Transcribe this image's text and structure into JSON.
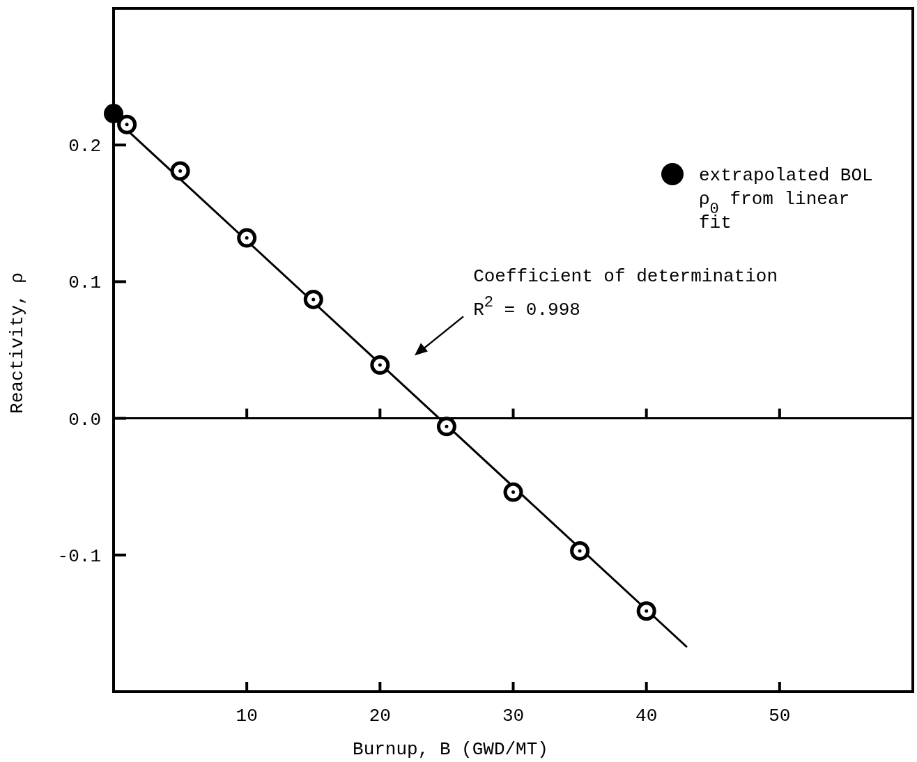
{
  "chart_data": {
    "type": "scatter",
    "xlabel": "Burnup, B (GWD/MT)",
    "ylabel": "Reactivity, ρ",
    "xlim": [
      0,
      60
    ],
    "ylim": [
      -0.2,
      0.3
    ],
    "xticks": [
      {
        "value": 0,
        "label": null
      },
      10,
      20,
      30,
      40,
      50
    ],
    "yticks": [
      {
        "value": -0.1,
        "label": "-0.1"
      },
      {
        "value": 0,
        "label": "0.0"
      },
      0.1,
      0.2
    ],
    "series": [
      {
        "type": "line",
        "marker": "none",
        "color": "#000000",
        "x": [
          0,
          43
        ],
        "values": [
          0.22,
          -0.167
        ]
      },
      {
        "marker": "circle",
        "color": "#000000",
        "x": [
          1,
          5,
          10,
          15,
          20,
          25,
          30,
          35,
          40
        ],
        "values": [
          0.215,
          0.181,
          0.132,
          0.087,
          0.039,
          -0.006,
          -0.054,
          -0.097,
          -0.141
        ]
      },
      {
        "marker": "circle",
        "name": "extrapolated BOL ρ$_{0}$ from linear fit",
        "color": "#000000",
        "x": [
          0
        ],
        "values": [
          0.223
        ]
      }
    ],
    "legend": "top right",
    "grid": false,
    "ref_lines": [
      {
        "axis": "y",
        "value": 0
      }
    ],
    "annotations": [
      "Coefficient of determination",
      "R$^{2}$ = 0.998"
    ]
  }
}
